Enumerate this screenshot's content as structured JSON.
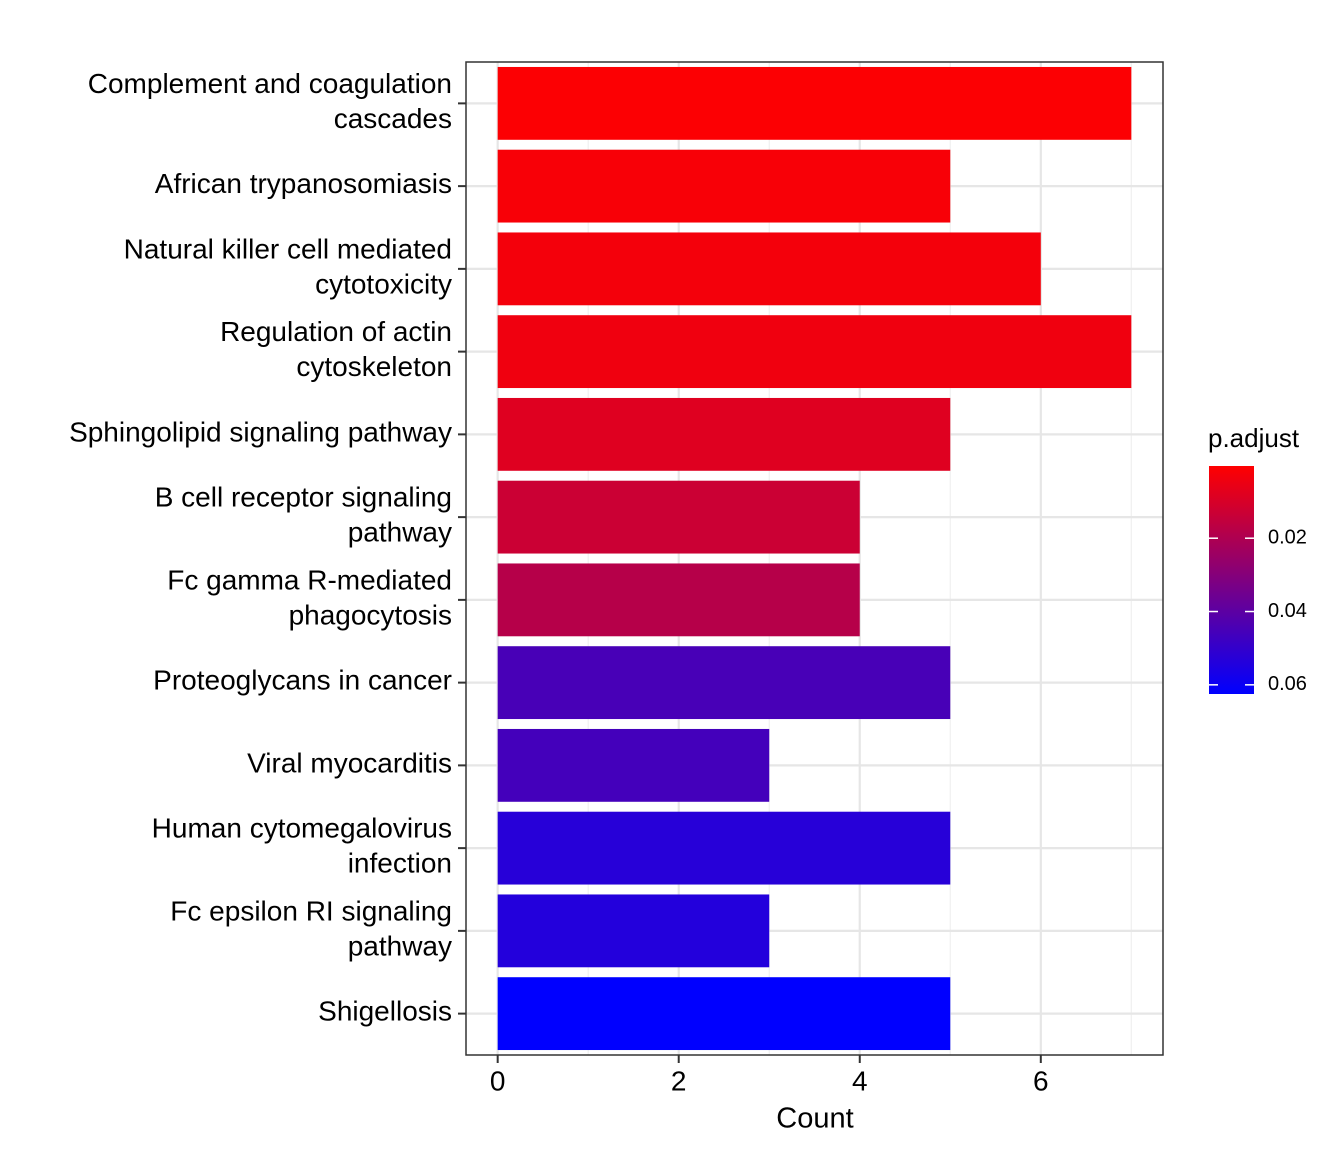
{
  "chart_data": {
    "type": "bar",
    "orientation": "horizontal",
    "x_label": "Count",
    "categories": [
      "Complement and coagulation\ncascades",
      "African trypanosomiasis",
      "Natural killer cell mediated\ncytotoxicity",
      "Regulation of actin\ncytoskeleton",
      "Sphingolipid signaling pathway",
      "B cell receptor signaling\npathway",
      "Fc gamma R-mediated\nphagocytosis",
      "Proteoglycans in cancer",
      "Viral myocarditis",
      "Human cytomegalovirus\ninfection",
      "Fc epsilon RI signaling\npathway",
      "Shigellosis"
    ],
    "values": [
      7,
      5,
      6,
      7,
      5,
      4,
      4,
      5,
      3,
      5,
      3,
      5
    ],
    "color_values": [
      0.001,
      0.002,
      0.003,
      0.004,
      0.008,
      0.013,
      0.018,
      0.045,
      0.046,
      0.053,
      0.054,
      0.0625
    ],
    "xlim": [
      -0.35,
      7.35
    ],
    "xticks": [
      0,
      2,
      4,
      6
    ],
    "x_minor_grid": [
      1,
      3,
      5,
      7
    ],
    "grid": true,
    "color_legend": {
      "title": "p.adjust",
      "low_color": "#FF0000",
      "high_color": "#0000FF",
      "lim": [
        0.0003,
        0.0625
      ],
      "ticks": [
        0.02,
        0.04,
        0.06
      ]
    }
  }
}
